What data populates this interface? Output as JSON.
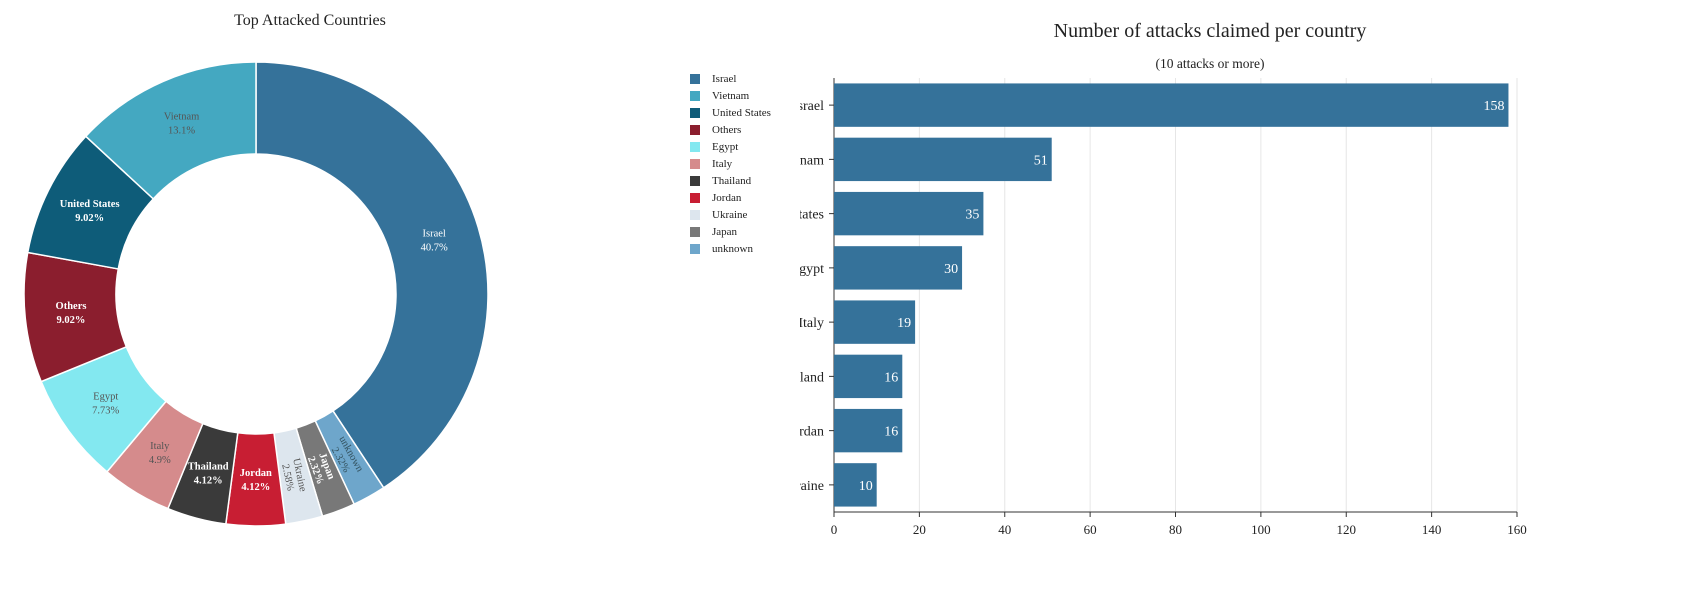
{
  "chart_data": [
    {
      "type": "pie",
      "donut": true,
      "title": "Top Attacked Countries",
      "legend_placement": "right",
      "slices": [
        {
          "label": "Israel",
          "value_label": "40.7%",
          "value": 40.7,
          "color": "#35729A",
          "text_color": "#ffffff"
        },
        {
          "label": "unknown",
          "value_label": "2.32%",
          "value": 2.32,
          "color": "#6EA6CB",
          "text_color": "#33525f"
        },
        {
          "label": "Japan",
          "value_label": "2.32%",
          "value": 2.32,
          "color": "#787878",
          "text_color": "#ffffff"
        },
        {
          "label": "Ukraine",
          "value_label": "2.58%",
          "value": 2.58,
          "color": "#DDE6EE",
          "text_color": "#555555"
        },
        {
          "label": "Jordan",
          "value_label": "4.12%",
          "value": 4.12,
          "color": "#C81E33",
          "text_color": "#ffffff"
        },
        {
          "label": "Thailand",
          "value_label": "4.12%",
          "value": 4.12,
          "color": "#3A3A3A",
          "text_color": "#ffffff"
        },
        {
          "label": "Italy",
          "value_label": "4.9%",
          "value": 4.9,
          "color": "#D58B8C",
          "text_color": "#555555"
        },
        {
          "label": "Egypt",
          "value_label": "7.73%",
          "value": 7.73,
          "color": "#83E8F0",
          "text_color": "#555555"
        },
        {
          "label": "Others",
          "value_label": "9.02%",
          "value": 9.02,
          "color": "#8B1E2E",
          "text_color": "#ffffff"
        },
        {
          "label": "United States",
          "value_label": "9.02%",
          "value": 9.02,
          "color": "#0E5C79",
          "text_color": "#ffffff"
        },
        {
          "label": "Vietnam",
          "value_label": "13.1%",
          "value": 13.1,
          "color": "#44A8C1",
          "text_color": "#555555"
        }
      ],
      "legend": [
        {
          "label": "Israel",
          "color": "#35729A"
        },
        {
          "label": "Vietnam",
          "color": "#44A8C1"
        },
        {
          "label": "United States",
          "color": "#0E5C79"
        },
        {
          "label": "Others",
          "color": "#8B1E2E"
        },
        {
          "label": "Egypt",
          "color": "#83E8F0"
        },
        {
          "label": "Italy",
          "color": "#D58B8C"
        },
        {
          "label": "Thailand",
          "color": "#3A3A3A"
        },
        {
          "label": "Jordan",
          "color": "#C81E33"
        },
        {
          "label": "Ukraine",
          "color": "#DDE6EE"
        },
        {
          "label": "Japan",
          "color": "#787878"
        },
        {
          "label": "unknown",
          "color": "#6EA6CB"
        }
      ]
    },
    {
      "type": "bar",
      "orientation": "horizontal",
      "title": "Number of attacks claimed per country",
      "subtitle": "(10 attacks or more)",
      "categories": [
        "Israel",
        "Vietnam",
        "United States",
        "Egypt",
        "Italy",
        "Thailand",
        "Jordan",
        "Ukraine"
      ],
      "values": [
        158,
        51,
        35,
        30,
        19,
        16,
        16,
        10
      ],
      "xlim": [
        0,
        160
      ],
      "xticks": [
        0,
        20,
        40,
        60,
        80,
        100,
        120,
        140,
        160
      ],
      "grid": true,
      "bar_color": "#35729A"
    }
  ]
}
